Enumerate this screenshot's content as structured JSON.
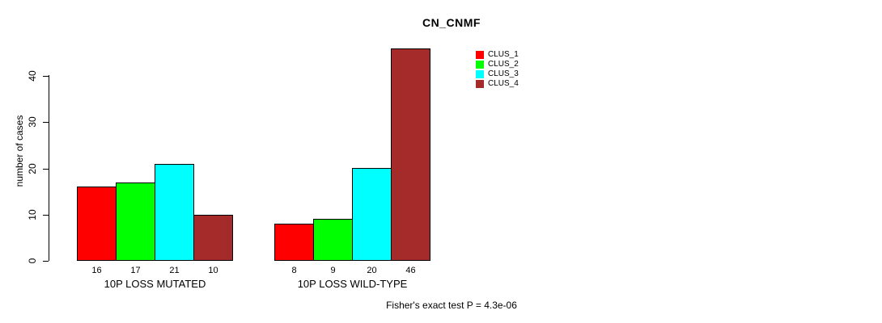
{
  "title": "CN_CNMF",
  "y_axis": {
    "label": "number of cases",
    "ticks": [
      0,
      10,
      20,
      30,
      40
    ]
  },
  "footer": "Fisher's exact test P = 4.3e-06",
  "colors": {
    "clus_1": "#ff0000",
    "clus_2": "#00ff00",
    "clus_3": "#00ffff",
    "clus_4": "#a52a2a",
    "axis": "#000000",
    "background": "#ffffff"
  },
  "chart_data": {
    "type": "bar",
    "title": "CN_CNMF",
    "xlabel": "",
    "ylabel": "number of cases",
    "ylim": [
      0,
      46
    ],
    "yticks": [
      0,
      10,
      20,
      30,
      40
    ],
    "grid": false,
    "legend_position": "top-right",
    "categories": [
      "10P LOSS MUTATED",
      "10P LOSS WILD-TYPE"
    ],
    "series": [
      {
        "name": "CLUS_1",
        "color": "#ff0000",
        "values": [
          16,
          8
        ]
      },
      {
        "name": "CLUS_2",
        "color": "#00ff00",
        "values": [
          17,
          9
        ]
      },
      {
        "name": "CLUS_3",
        "color": "#00ffff",
        "values": [
          21,
          20
        ]
      },
      {
        "name": "CLUS_4",
        "color": "#a52a2a",
        "values": [
          10,
          46
        ]
      }
    ],
    "bar_value_labels": [
      [
        16,
        17,
        21,
        10
      ],
      [
        8,
        9,
        20,
        46
      ]
    ],
    "annotation": "Fisher's exact test P = 4.3e-06"
  }
}
